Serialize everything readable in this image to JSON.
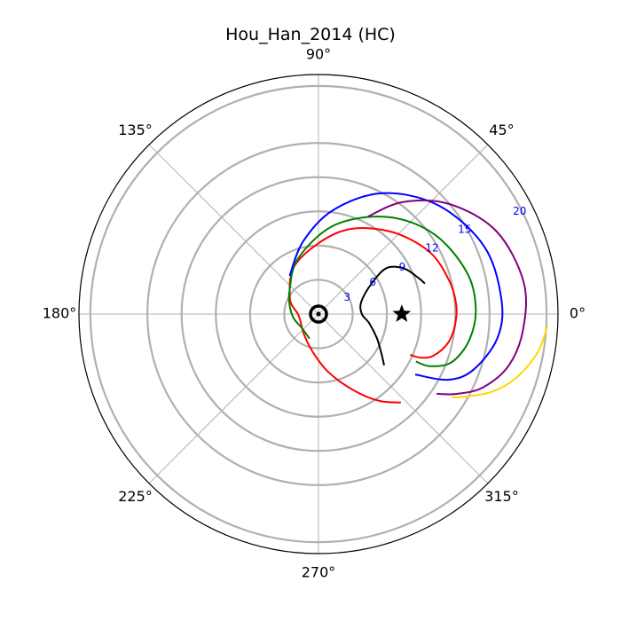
{
  "chart_data": {
    "type": "polar",
    "title": "Hou_Han_2014 (HC)",
    "angle_ticks": [
      "0°",
      "45°",
      "90°",
      "135°",
      "180°",
      "225°",
      "270°",
      "315°"
    ],
    "angle_tick_values_deg": [
      0,
      45,
      90,
      135,
      180,
      225,
      270,
      315
    ],
    "radial_rings": [
      3,
      6,
      9,
      12,
      15,
      20
    ],
    "radial_max": 21,
    "grid": true,
    "series_note": "contour arcs in polar coordinates (r in radial units, theta in degrees)",
    "contours": [
      {
        "label": "",
        "color": "#000000",
        "points": [
          [
            7.3,
            -38
          ],
          [
            6.5,
            -32
          ],
          [
            5.5,
            -22
          ],
          [
            4.5,
            -10
          ],
          [
            3.8,
            0
          ],
          [
            3.9,
            16
          ],
          [
            5.4,
            30
          ],
          [
            7.2,
            34
          ],
          [
            8.5,
            28
          ],
          [
            9.3,
            20
          ],
          [
            9.7,
            16
          ]
        ]
      },
      {
        "label": "",
        "color": "#ff0000",
        "points": [
          [
            10.6,
            -47
          ],
          [
            9.3,
            -55
          ],
          [
            7.4,
            -65
          ],
          [
            5.2,
            -80
          ],
          [
            3.4,
            -98
          ],
          [
            2.2,
            -125
          ],
          [
            1.7,
            -160
          ],
          [
            1.8,
            180
          ],
          [
            2.9,
            150
          ],
          [
            4.9,
            113
          ],
          [
            7.5,
            75
          ],
          [
            9.5,
            50
          ],
          [
            11.1,
            30
          ],
          [
            11.8,
            15
          ],
          [
            12.1,
            4
          ],
          [
            12.0,
            -5
          ],
          [
            11.6,
            -13
          ],
          [
            10.7,
            -20
          ],
          [
            9.8,
            -23
          ],
          [
            8.8,
            -24
          ]
        ]
      },
      {
        "label": "",
        "color": "#008000",
        "points": [
          [
            2.3,
            -110
          ],
          [
            1.9,
            -140
          ],
          [
            2.2,
            -170
          ],
          [
            2.6,
            165
          ],
          [
            3.3,
            140
          ],
          [
            5.2,
            110
          ],
          [
            7.9,
            80
          ],
          [
            10.4,
            55
          ],
          [
            12.3,
            35
          ],
          [
            13.5,
            16
          ],
          [
            13.8,
            2
          ],
          [
            13.4,
            -10
          ],
          [
            12.4,
            -20
          ],
          [
            10.8,
            -25
          ],
          [
            9.5,
            -26
          ]
        ]
      },
      {
        "label": "",
        "color": "#0000ff",
        "points": [
          [
            4.2,
            127
          ],
          [
            6.5,
            102
          ],
          [
            9.2,
            82
          ],
          [
            12.0,
            62
          ],
          [
            14.2,
            42
          ],
          [
            15.7,
            22
          ],
          [
            16.1,
            4
          ],
          [
            15.8,
            -8
          ],
          [
            14.4,
            -20
          ],
          [
            12.7,
            -27
          ],
          [
            10.0,
            -32
          ]
        ]
      },
      {
        "label": "",
        "color": "#800080",
        "points": [
          [
            9.6,
            63
          ],
          [
            12.3,
            53
          ],
          [
            15.0,
            40
          ],
          [
            17.2,
            25
          ],
          [
            18.2,
            9
          ],
          [
            18.0,
            -4
          ],
          [
            17.3,
            -15
          ],
          [
            15.8,
            -24
          ],
          [
            14.0,
            -30
          ],
          [
            12.5,
            -34
          ]
        ]
      },
      {
        "label": "",
        "color": "#ffd700",
        "points": [
          [
            20.1,
            -3
          ],
          [
            19.5,
            -10
          ],
          [
            18.2,
            -18
          ],
          [
            16.7,
            -24
          ],
          [
            14.9,
            -29
          ],
          [
            13.8,
            -32
          ]
        ]
      }
    ],
    "contour_labels": [
      {
        "text": "3",
        "r": 2.9,
        "theta": 30
      },
      {
        "text": "6",
        "r": 5.5,
        "theta": 30
      },
      {
        "text": "9",
        "r": 8.4,
        "theta": 29
      },
      {
        "text": "12",
        "r": 11.5,
        "theta": 30
      },
      {
        "text": "15",
        "r": 14.8,
        "theta": 30
      },
      {
        "text": "20",
        "r": 19.8,
        "theta": 27
      }
    ],
    "label_color": "#0000ff",
    "markers": [
      {
        "name": "sun",
        "symbol": "circle-dot",
        "r": 0,
        "theta": 0,
        "color": "#000000"
      },
      {
        "name": "star",
        "symbol": "star",
        "r": 7.3,
        "theta": 0,
        "color": "#000000"
      }
    ],
    "grid_color": "#b0b0b0"
  }
}
